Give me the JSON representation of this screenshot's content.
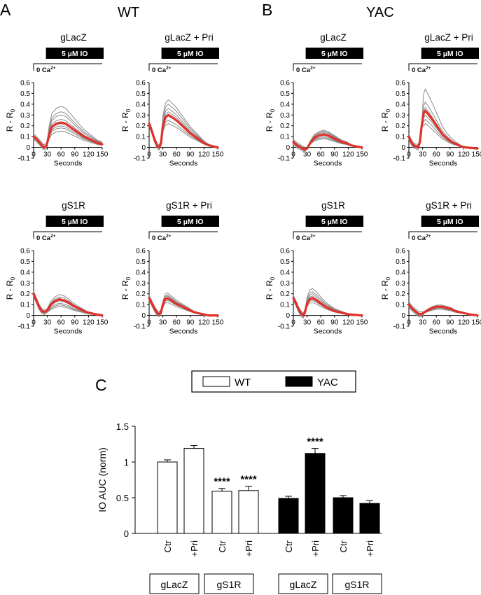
{
  "figure": {
    "panel_a_letter": "A",
    "panel_b_letter": "B",
    "panel_c_letter": "C",
    "group_wt": "WT",
    "group_yac": "YAC",
    "stimulus_label": "5 µM IO",
    "calcium_label_base": "0 Ca",
    "calcium_label_sup": "2+"
  },
  "chart_data": [
    {
      "type": "line",
      "id": "wt-glacz",
      "title": "gLacZ",
      "group": "WT",
      "xlabel": "Seconds",
      "ylabel_main": "R - R",
      "ylabel_sub": "0",
      "xticks": [
        0,
        30,
        60,
        90,
        120,
        150
      ],
      "yticks": [
        -0.1,
        0,
        0.1,
        0.2,
        0.3,
        0.4,
        0.5,
        0.6
      ],
      "xlim": [
        0,
        150
      ],
      "ylim": [
        -0.1,
        0.6
      ],
      "mean_trace": [
        [
          0,
          0.1
        ],
        [
          8,
          0.07
        ],
        [
          16,
          0.03
        ],
        [
          22,
          0.0
        ],
        [
          28,
          0.01
        ],
        [
          34,
          0.12
        ],
        [
          40,
          0.19
        ],
        [
          50,
          0.22
        ],
        [
          60,
          0.23
        ],
        [
          70,
          0.22
        ],
        [
          80,
          0.19
        ],
        [
          90,
          0.16
        ],
        [
          100,
          0.13
        ],
        [
          110,
          0.1
        ],
        [
          120,
          0.08
        ],
        [
          130,
          0.06
        ],
        [
          140,
          0.04
        ],
        [
          150,
          0.03
        ]
      ],
      "gray_peaks": [
        0.38,
        0.33,
        0.3,
        0.26,
        0.22,
        0.2,
        0.18,
        0.15
      ]
    },
    {
      "type": "line",
      "id": "wt-glacz-pri",
      "title": "gLacZ + Pri",
      "group": "WT",
      "xlabel": "Seconds",
      "ylabel_main": "R - R",
      "ylabel_sub": "0",
      "xticks": [
        0,
        30,
        60,
        90,
        120,
        150
      ],
      "yticks": [
        -0.1,
        0,
        0.1,
        0.2,
        0.3,
        0.4,
        0.5,
        0.6
      ],
      "xlim": [
        0,
        150
      ],
      "ylim": [
        -0.1,
        0.6
      ],
      "mean_trace": [
        [
          0,
          0.22
        ],
        [
          6,
          0.15
        ],
        [
          12,
          0.07
        ],
        [
          18,
          0.01
        ],
        [
          22,
          0.0
        ],
        [
          26,
          0.04
        ],
        [
          30,
          0.2
        ],
        [
          36,
          0.28
        ],
        [
          42,
          0.3
        ],
        [
          50,
          0.28
        ],
        [
          60,
          0.25
        ],
        [
          70,
          0.21
        ],
        [
          80,
          0.17
        ],
        [
          90,
          0.13
        ],
        [
          100,
          0.1
        ],
        [
          110,
          0.07
        ],
        [
          120,
          0.04
        ],
        [
          130,
          0.02
        ],
        [
          140,
          0.01
        ],
        [
          150,
          0.0
        ]
      ],
      "gray_peaks": [
        0.44,
        0.4,
        0.36,
        0.33,
        0.29,
        0.25,
        0.22
      ]
    },
    {
      "type": "line",
      "id": "yac-glacz",
      "title": "gLacZ",
      "group": "YAC",
      "xlabel": "Seconds",
      "ylabel_main": "R - R",
      "ylabel_sub": "0",
      "xticks": [
        0,
        30,
        60,
        90,
        120,
        150
      ],
      "yticks": [
        -0.1,
        0,
        0.1,
        0.2,
        0.3,
        0.4,
        0.5,
        0.6
      ],
      "xlim": [
        0,
        150
      ],
      "ylim": [
        -0.1,
        0.6
      ],
      "mean_trace": [
        [
          0,
          0.05
        ],
        [
          8,
          0.02
        ],
        [
          16,
          0.0
        ],
        [
          24,
          -0.02
        ],
        [
          30,
          -0.01
        ],
        [
          38,
          0.05
        ],
        [
          46,
          0.09
        ],
        [
          56,
          0.11
        ],
        [
          66,
          0.12
        ],
        [
          76,
          0.11
        ],
        [
          86,
          0.09
        ],
        [
          96,
          0.07
        ],
        [
          106,
          0.05
        ],
        [
          116,
          0.04
        ],
        [
          126,
          0.02
        ],
        [
          136,
          0.01
        ],
        [
          150,
          0.0
        ]
      ],
      "gray_peaks": [
        0.16,
        0.15,
        0.14,
        0.13,
        0.12,
        0.1,
        0.09,
        0.08
      ]
    },
    {
      "type": "line",
      "id": "yac-glacz-pri",
      "title": "gLacZ + Pri",
      "group": "YAC",
      "xlabel": "Seconds",
      "ylabel_main": "R - R",
      "ylabel_sub": "0",
      "xticks": [
        0,
        30,
        60,
        90,
        120,
        150
      ],
      "yticks": [
        -0.1,
        0,
        0.1,
        0.2,
        0.3,
        0.4,
        0.5,
        0.6
      ],
      "xlim": [
        0,
        150
      ],
      "ylim": [
        -0.1,
        0.6
      ],
      "mean_trace": [
        [
          0,
          0.1
        ],
        [
          5,
          0.05
        ],
        [
          10,
          0.02
        ],
        [
          15,
          0.01
        ],
        [
          20,
          0.0
        ],
        [
          24,
          0.05
        ],
        [
          28,
          0.2
        ],
        [
          32,
          0.31
        ],
        [
          36,
          0.34
        ],
        [
          44,
          0.3
        ],
        [
          54,
          0.24
        ],
        [
          64,
          0.18
        ],
        [
          74,
          0.12
        ],
        [
          84,
          0.08
        ],
        [
          94,
          0.05
        ],
        [
          104,
          0.03
        ],
        [
          114,
          0.01
        ],
        [
          124,
          0.0
        ],
        [
          150,
          -0.01
        ]
      ],
      "gray_peaks": [
        0.54,
        0.42,
        0.37,
        0.33,
        0.3,
        0.26,
        0.22
      ]
    },
    {
      "type": "line",
      "id": "wt-gs1r",
      "title": "gS1R",
      "group": "WT",
      "xlabel": "Seconds",
      "ylabel_main": "R - R",
      "ylabel_sub": "0",
      "xticks": [
        0,
        30,
        60,
        90,
        120,
        150
      ],
      "yticks": [
        -0.1,
        0,
        0.1,
        0.2,
        0.3,
        0.4,
        0.5,
        0.6
      ],
      "xlim": [
        0,
        150
      ],
      "ylim": [
        -0.1,
        0.6
      ],
      "mean_trace": [
        [
          0,
          0.2
        ],
        [
          6,
          0.14
        ],
        [
          12,
          0.08
        ],
        [
          18,
          0.04
        ],
        [
          24,
          0.03
        ],
        [
          30,
          0.05
        ],
        [
          38,
          0.1
        ],
        [
          46,
          0.13
        ],
        [
          56,
          0.15
        ],
        [
          66,
          0.14
        ],
        [
          76,
          0.12
        ],
        [
          86,
          0.09
        ],
        [
          96,
          0.07
        ],
        [
          106,
          0.05
        ],
        [
          116,
          0.03
        ],
        [
          126,
          0.02
        ],
        [
          136,
          0.01
        ],
        [
          150,
          0.0
        ]
      ],
      "gray_peaks": [
        0.26,
        0.23,
        0.2,
        0.18,
        0.15,
        0.13,
        0.11
      ]
    },
    {
      "type": "line",
      "id": "wt-gs1r-pri",
      "title": "gS1R + Pri",
      "group": "WT",
      "xlabel": "Seconds",
      "ylabel_main": "R - R",
      "ylabel_sub": "0",
      "xticks": [
        0,
        30,
        60,
        90,
        120,
        150
      ],
      "yticks": [
        -0.1,
        0,
        0.1,
        0.2,
        0.3,
        0.4,
        0.5,
        0.6
      ],
      "xlim": [
        0,
        150
      ],
      "ylim": [
        -0.1,
        0.6
      ],
      "mean_trace": [
        [
          0,
          0.16
        ],
        [
          6,
          0.11
        ],
        [
          12,
          0.06
        ],
        [
          18,
          0.02
        ],
        [
          22,
          0.01
        ],
        [
          26,
          0.03
        ],
        [
          30,
          0.1
        ],
        [
          35,
          0.15
        ],
        [
          40,
          0.16
        ],
        [
          48,
          0.14
        ],
        [
          58,
          0.11
        ],
        [
          68,
          0.09
        ],
        [
          78,
          0.07
        ],
        [
          88,
          0.05
        ],
        [
          98,
          0.03
        ],
        [
          108,
          0.02
        ],
        [
          118,
          0.01
        ],
        [
          130,
          0.0
        ],
        [
          150,
          0.0
        ]
      ],
      "gray_peaks": [
        0.21,
        0.19,
        0.18,
        0.16,
        0.14,
        0.12
      ]
    },
    {
      "type": "line",
      "id": "yac-gs1r",
      "title": "gS1R",
      "group": "YAC",
      "xlabel": "Seconds",
      "ylabel_main": "R - R",
      "ylabel_sub": "0",
      "xticks": [
        0,
        30,
        60,
        90,
        120,
        150
      ],
      "yticks": [
        -0.1,
        0,
        0.1,
        0.2,
        0.3,
        0.4,
        0.5,
        0.6
      ],
      "xlim": [
        0,
        150
      ],
      "ylim": [
        -0.1,
        0.6
      ],
      "mean_trace": [
        [
          0,
          0.16
        ],
        [
          6,
          0.11
        ],
        [
          12,
          0.05
        ],
        [
          18,
          0.01
        ],
        [
          22,
          0.0
        ],
        [
          26,
          0.04
        ],
        [
          30,
          0.11
        ],
        [
          36,
          0.15
        ],
        [
          42,
          0.16
        ],
        [
          50,
          0.14
        ],
        [
          60,
          0.11
        ],
        [
          70,
          0.08
        ],
        [
          80,
          0.06
        ],
        [
          90,
          0.04
        ],
        [
          100,
          0.03
        ],
        [
          110,
          0.02
        ],
        [
          120,
          0.01
        ],
        [
          150,
          0.0
        ]
      ],
      "gray_peaks": [
        0.25,
        0.22,
        0.2,
        0.18,
        0.16,
        0.14,
        0.12
      ]
    },
    {
      "type": "line",
      "id": "yac-gs1r-pri",
      "title": "gS1R + Pri",
      "group": "YAC",
      "xlabel": "Seconds",
      "ylabel_main": "R - R",
      "ylabel_sub": "0",
      "xticks": [
        0,
        30,
        60,
        90,
        120,
        150
      ],
      "yticks": [
        -0.1,
        0,
        0.1,
        0.2,
        0.3,
        0.4,
        0.5,
        0.6
      ],
      "xlim": [
        0,
        150
      ],
      "ylim": [
        -0.1,
        0.6
      ],
      "mean_trace": [
        [
          0,
          0.1
        ],
        [
          8,
          0.06
        ],
        [
          16,
          0.03
        ],
        [
          22,
          0.01
        ],
        [
          28,
          0.01
        ],
        [
          34,
          0.03
        ],
        [
          42,
          0.05
        ],
        [
          52,
          0.07
        ],
        [
          62,
          0.08
        ],
        [
          72,
          0.08
        ],
        [
          82,
          0.07
        ],
        [
          92,
          0.06
        ],
        [
          102,
          0.04
        ],
        [
          112,
          0.03
        ],
        [
          122,
          0.02
        ],
        [
          132,
          0.01
        ],
        [
          150,
          0.0
        ]
      ],
      "gray_peaks": [
        0.12,
        0.11,
        0.1,
        0.09,
        0.08,
        0.07
      ]
    },
    {
      "type": "bar",
      "id": "io-auc",
      "ylabel": "IO AUC (norm)",
      "ylim": [
        0,
        1.5
      ],
      "yticks": [
        "0",
        "0.5",
        "1",
        "1.5"
      ],
      "ytick_values": [
        0,
        0.5,
        1,
        1.5
      ],
      "categories": [
        "Ctr",
        "+Pri",
        "Ctr",
        "+Pri",
        "Ctr",
        "+Pri",
        "Ctr",
        "+Pri"
      ],
      "values": [
        1.0,
        1.19,
        0.59,
        0.6,
        0.49,
        1.12,
        0.5,
        0.42
      ],
      "errors": [
        0.03,
        0.04,
        0.04,
        0.06,
        0.03,
        0.07,
        0.03,
        0.04
      ],
      "genotype": [
        "WT",
        "WT",
        "WT",
        "WT",
        "YAC",
        "YAC",
        "YAC",
        "YAC"
      ],
      "significance": [
        "",
        "",
        "****",
        "****",
        "",
        "****",
        "",
        ""
      ],
      "legend": [
        {
          "name": "WT",
          "color": "#ffffff"
        },
        {
          "name": "YAC",
          "color": "#000000"
        }
      ],
      "group_labels": [
        "gLacZ",
        "gS1R",
        "gLacZ",
        "gS1R"
      ]
    }
  ],
  "colors": {
    "mean_trace": "#e0302a",
    "individual_trace": "#8a8a8a",
    "axis": "#000000"
  }
}
